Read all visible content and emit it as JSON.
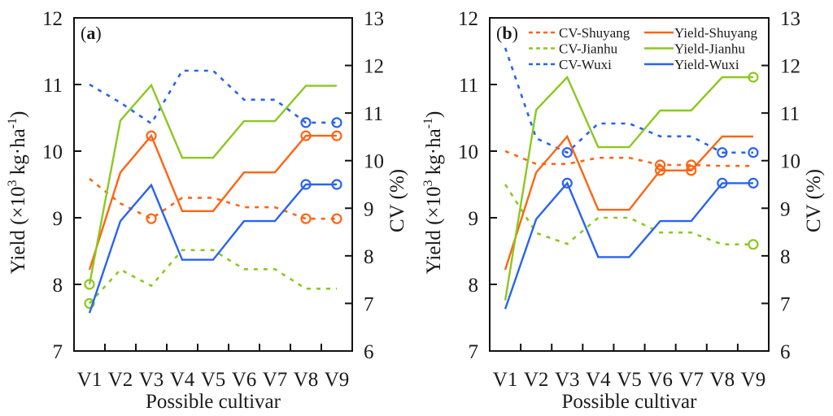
{
  "chart_data": [
    {
      "type": "line",
      "panel_label": "a",
      "categories": [
        "V1",
        "V2",
        "V3",
        "V4",
        "V5",
        "V6",
        "V7",
        "V8",
        "V9"
      ],
      "xlabel": "Possible cultivar",
      "ylabel": "Yield (×10³ kg·ha⁻¹)",
      "ylabel_parts": {
        "main": "Yield (×10",
        "sup1": "3",
        "mid": " kg·ha",
        "sup2": "-1",
        "end": ")"
      },
      "y2label": "CV (%)",
      "ylim": [
        7,
        12
      ],
      "y2lim": [
        6,
        13
      ],
      "yticks": [
        7,
        8,
        9,
        10,
        11,
        12
      ],
      "y2ticks": [
        6,
        7,
        8,
        9,
        10,
        11,
        12,
        13
      ],
      "legend": null,
      "series": [
        {
          "name": "CV-Shuyang",
          "axis": "right",
          "style": "dashed",
          "color": "#ff6414",
          "values": [
            9.62,
            9.1,
            8.78,
            9.22,
            9.22,
            9.02,
            9.02,
            8.78,
            8.78
          ],
          "markers": [
            2,
            7,
            8
          ]
        },
        {
          "name": "CV-Jianhu",
          "axis": "right",
          "style": "dashed",
          "color": "#8cc81e",
          "values": [
            7.0,
            7.71,
            7.37,
            8.12,
            8.12,
            7.72,
            7.72,
            7.31,
            7.31
          ],
          "markers": [
            0
          ]
        },
        {
          "name": "CV-Wuxi",
          "axis": "right",
          "style": "dashed",
          "color": "#2864f0",
          "values": [
            11.6,
            11.22,
            10.78,
            11.89,
            11.89,
            11.28,
            11.28,
            10.8,
            10.8
          ],
          "markers": [
            7,
            8
          ]
        },
        {
          "name": "Yield-Shuyang",
          "axis": "left",
          "style": "solid",
          "color": "#ff6414",
          "values": [
            8.22,
            9.68,
            10.23,
            9.1,
            9.1,
            9.68,
            9.68,
            10.23,
            10.23
          ],
          "markers": [
            2,
            7,
            8
          ]
        },
        {
          "name": "Yield-Jianhu",
          "axis": "left",
          "style": "solid",
          "color": "#8cc81e",
          "values": [
            8.0,
            10.46,
            10.99,
            9.9,
            9.9,
            10.45,
            10.45,
            10.98,
            10.98
          ],
          "markers": [
            0
          ]
        },
        {
          "name": "Yield-Wuxi",
          "axis": "left",
          "style": "solid",
          "color": "#2864f0",
          "values": [
            7.57,
            8.95,
            9.49,
            8.37,
            8.37,
            8.95,
            8.95,
            9.5,
            9.5
          ],
          "markers": [
            7,
            8
          ]
        }
      ]
    },
    {
      "type": "line",
      "panel_label": "b",
      "categories": [
        "V1",
        "V2",
        "V3",
        "V4",
        "V5",
        "V6",
        "V7",
        "V8",
        "V9"
      ],
      "xlabel": "Possible cultivar",
      "ylabel": "Yield (×10³ kg·ha⁻¹)",
      "ylabel_parts": {
        "main": "Yield (×10",
        "sup1": "3",
        "mid": " kg·ha",
        "sup2": "-1",
        "end": ")"
      },
      "y2label": "CV (%)",
      "ylim": [
        7,
        12
      ],
      "y2lim": [
        6,
        13
      ],
      "yticks": [
        7,
        8,
        9,
        10,
        11,
        12
      ],
      "y2ticks": [
        6,
        7,
        8,
        9,
        10,
        11,
        12,
        13
      ],
      "legend": "top",
      "series": [
        {
          "name": "CV-Shuyang",
          "axis": "right",
          "style": "dashed",
          "color": "#ff6414",
          "values": [
            10.2,
            9.93,
            9.93,
            10.06,
            10.06,
            9.91,
            9.91,
            9.89,
            9.89
          ],
          "markers": [
            5,
            6
          ]
        },
        {
          "name": "CV-Jianhu",
          "axis": "right",
          "style": "dashed",
          "color": "#8cc81e",
          "values": [
            9.5,
            8.48,
            8.25,
            8.8,
            8.8,
            8.49,
            8.49,
            8.24,
            8.24
          ],
          "markers": [
            8
          ]
        },
        {
          "name": "CV-Wuxi",
          "axis": "right",
          "style": "dashed",
          "color": "#2864f0",
          "values": [
            12.37,
            10.47,
            10.17,
            10.78,
            10.78,
            10.51,
            10.51,
            10.17,
            10.17
          ],
          "markers": [
            2,
            7,
            8
          ]
        },
        {
          "name": "Yield-Shuyang",
          "axis": "left",
          "style": "solid",
          "color": "#ff6414",
          "values": [
            8.22,
            9.68,
            10.22,
            9.12,
            9.12,
            9.71,
            9.71,
            10.22,
            10.22
          ],
          "markers": [
            5,
            6
          ]
        },
        {
          "name": "Yield-Jianhu",
          "axis": "left",
          "style": "solid",
          "color": "#8cc81e",
          "values": [
            7.76,
            10.62,
            11.11,
            10.06,
            10.06,
            10.61,
            10.61,
            11.11,
            11.11
          ],
          "markers": [
            8
          ]
        },
        {
          "name": "Yield-Wuxi",
          "axis": "left",
          "style": "solid",
          "color": "#2864f0",
          "values": [
            7.63,
            8.98,
            9.52,
            8.41,
            8.41,
            8.95,
            8.95,
            9.52,
            9.52
          ],
          "markers": [
            2,
            7,
            8
          ]
        }
      ]
    }
  ]
}
